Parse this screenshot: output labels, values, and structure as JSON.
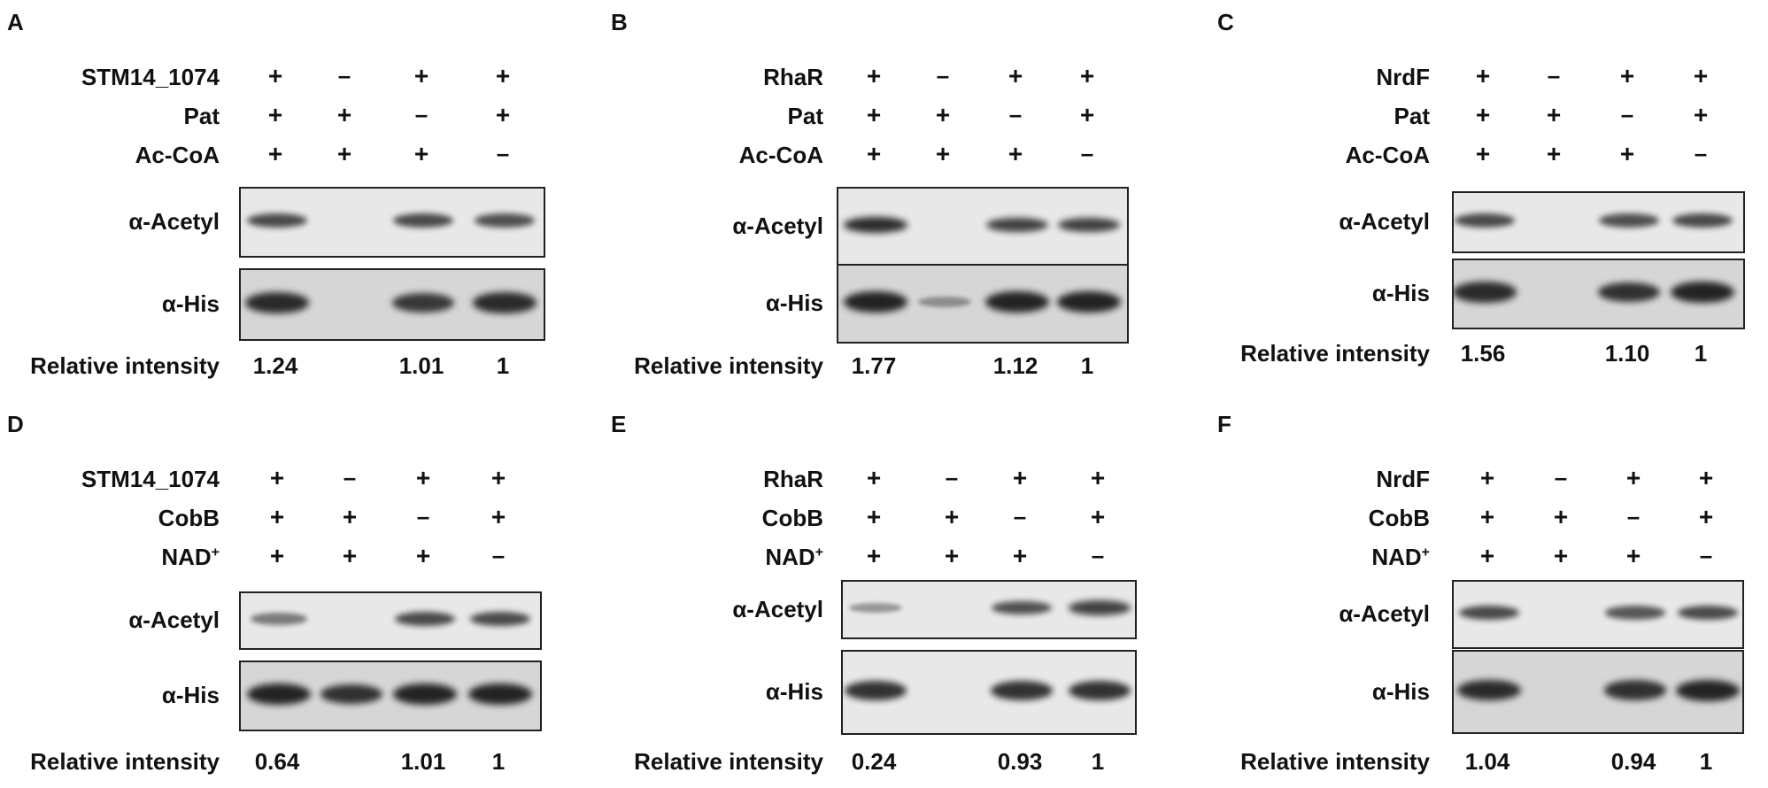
{
  "panels": [
    {
      "letter": "A",
      "protein": "STM14_1074",
      "enzyme": "Pat",
      "cofactor": "Ac-CoA",
      "protein_signs": [
        "+",
        "–",
        "+",
        "+"
      ],
      "enzyme_signs": [
        "+",
        "+",
        "–",
        "+"
      ],
      "cofactor_signs": [
        "+",
        "+",
        "+",
        "–"
      ],
      "blot1_label": "α-Acetyl",
      "blot2_label": "α-His",
      "blot1_levels": [
        0.75,
        0,
        0.75,
        0.7
      ],
      "blot2_levels": [
        0.95,
        0,
        0.85,
        0.95
      ],
      "ri_label": "Relative intensity",
      "ri_values": [
        "1.24",
        "",
        "1.01",
        "1"
      ]
    },
    {
      "letter": "B",
      "protein": "RhaR",
      "enzyme": "Pat",
      "cofactor": "Ac-CoA",
      "protein_signs": [
        "+",
        "–",
        "+",
        "+"
      ],
      "enzyme_signs": [
        "+",
        "+",
        "–",
        "+"
      ],
      "cofactor_signs": [
        "+",
        "+",
        "+",
        "–"
      ],
      "blot1_label": "α-Acetyl",
      "blot2_label": "α-His",
      "blot1_levels": [
        0.95,
        0,
        0.8,
        0.8
      ],
      "blot2_levels": [
        1,
        0.2,
        1,
        1
      ],
      "ri_label": "Relative intensity",
      "ri_values": [
        "1.77",
        "",
        "1.12",
        "1"
      ]
    },
    {
      "letter": "C",
      "protein": "NrdF",
      "enzyme": "Pat",
      "cofactor": "Ac-CoA",
      "protein_signs": [
        "+",
        "–",
        "+",
        "+"
      ],
      "enzyme_signs": [
        "+",
        "+",
        "–",
        "+"
      ],
      "cofactor_signs": [
        "+",
        "+",
        "+",
        "–"
      ],
      "blot1_label": "α-Acetyl",
      "blot2_label": "α-His",
      "blot1_levels": [
        0.75,
        0,
        0.7,
        0.75
      ],
      "blot2_levels": [
        0.95,
        0,
        0.9,
        1
      ],
      "ri_label": "Relative intensity",
      "ri_values": [
        "1.56",
        "",
        "1.10",
        "1"
      ]
    },
    {
      "letter": "D",
      "protein": "STM14_1074",
      "enzyme": "CobB",
      "cofactor": "NAD",
      "protein_signs": [
        "+",
        "–",
        "+",
        "+"
      ],
      "enzyme_signs": [
        "+",
        "+",
        "–",
        "+"
      ],
      "cofactor_signs": [
        "+",
        "+",
        "+",
        "–"
      ],
      "blot1_label": "α-Acetyl",
      "blot2_label": "α-His",
      "blot1_levels": [
        0.4,
        0,
        0.75,
        0.75
      ],
      "blot2_levels": [
        1,
        0.9,
        1,
        1
      ],
      "ri_label": "Relative intensity",
      "ri_values": [
        "0.64",
        "",
        "1.01",
        "1"
      ]
    },
    {
      "letter": "E",
      "protein": "RhaR",
      "enzyme": "CobB",
      "cofactor": "NAD",
      "protein_signs": [
        "+",
        "–",
        "+",
        "+"
      ],
      "enzyme_signs": [
        "+",
        "+",
        "–",
        "+"
      ],
      "cofactor_signs": [
        "+",
        "+",
        "+",
        "–"
      ],
      "blot1_label": "α-Acetyl",
      "blot2_label": "α-His",
      "blot1_levels": [
        0.2,
        0,
        0.7,
        0.8
      ],
      "blot2_levels": [
        0.9,
        0,
        0.9,
        0.9
      ],
      "ri_label": "Relative intensity",
      "ri_values": [
        "0.24",
        "",
        "0.93",
        "1"
      ]
    },
    {
      "letter": "F",
      "protein": "NrdF",
      "enzyme": "CobB",
      "cofactor": "NAD",
      "protein_signs": [
        "+",
        "–",
        "+",
        "+"
      ],
      "enzyme_signs": [
        "+",
        "+",
        "–",
        "+"
      ],
      "cofactor_signs": [
        "+",
        "+",
        "+",
        "–"
      ],
      "blot1_label": "α-Acetyl",
      "blot2_label": "α-His",
      "blot1_levels": [
        0.75,
        0,
        0.65,
        0.75
      ],
      "blot2_levels": [
        0.95,
        0,
        0.9,
        1
      ],
      "ri_label": "Relative intensity",
      "ri_values": [
        "1.04",
        "",
        "0.94",
        "1"
      ]
    }
  ],
  "cofactor_superscript": "+",
  "colors": {
    "text": "#111111",
    "blot_background": "#e8e8e8",
    "band": "#1a1a1a"
  }
}
